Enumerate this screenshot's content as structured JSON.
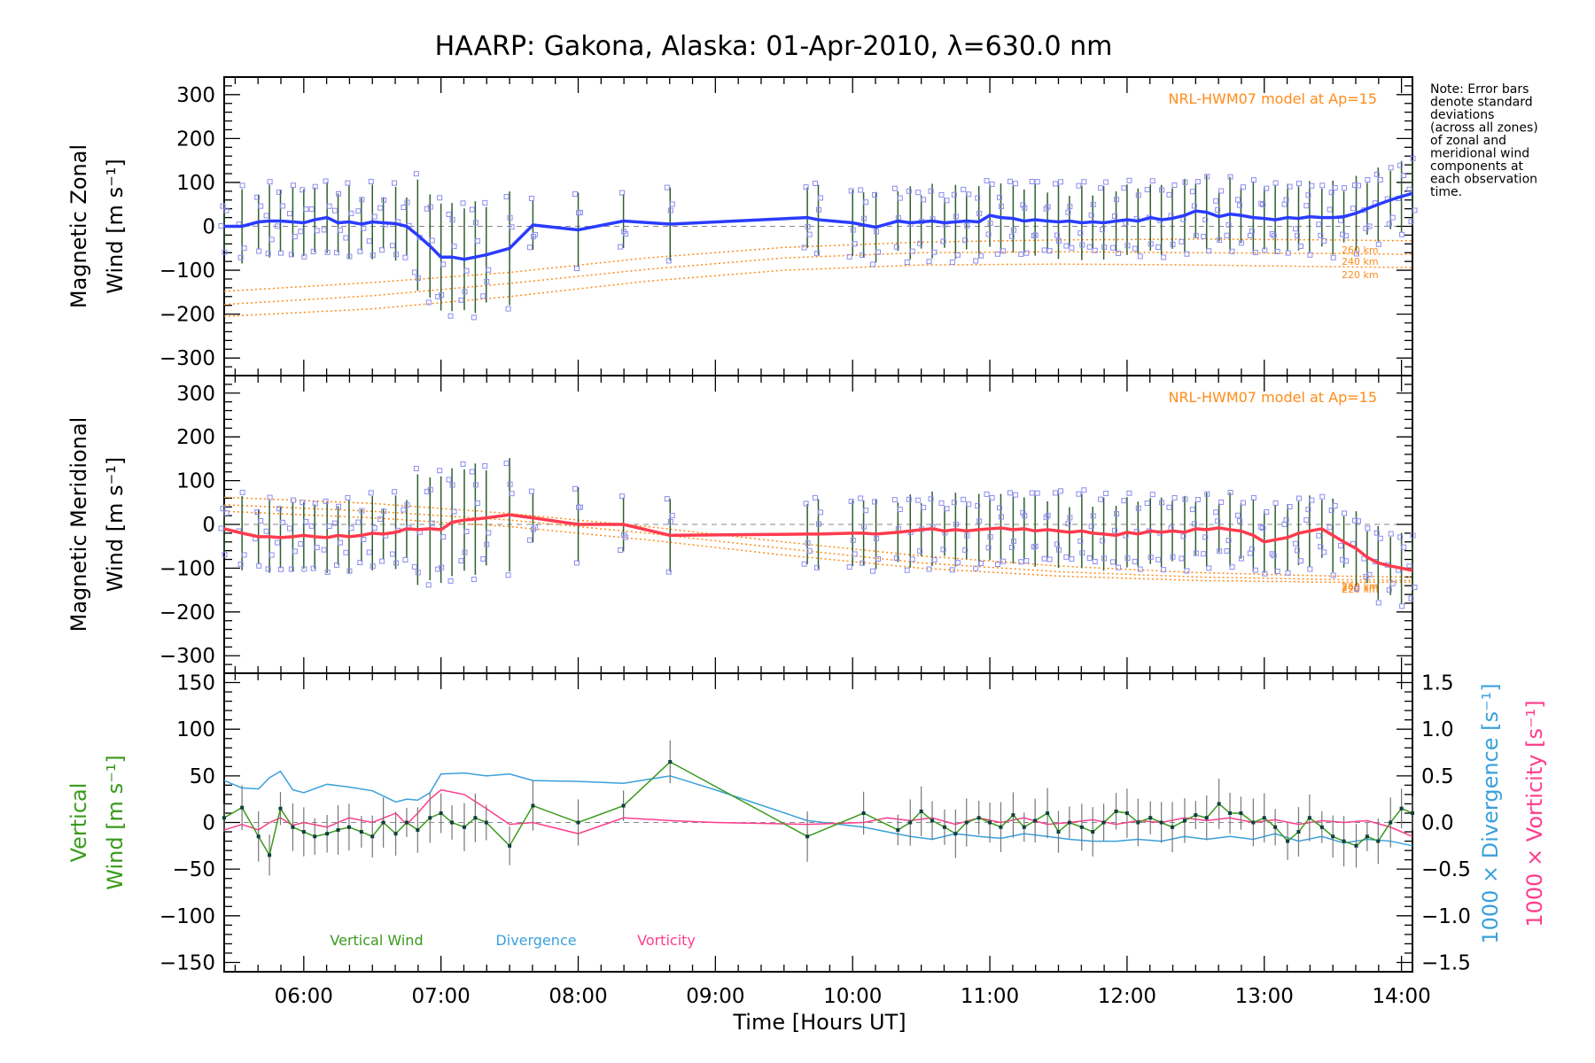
{
  "colors": {
    "zonal_line": "#2a3cff",
    "meridional_line": "#ff3b4e",
    "vertical": "#3a9a1c",
    "divergence": "#3aa0dc",
    "vorticity": "#ff3c8c",
    "model": "#ff8c1a",
    "error_bar": "#2f5f2f",
    "scatter": "#8c8cf0"
  },
  "chart_data": [
    {
      "type": "line",
      "title": "HAARP: Gakona,  Alaska: 01-Apr-2010, λ=630.0 nm",
      "ylabel_line1": "Magnetic Zonal",
      "ylabel_line2": "Wind [m s⁻¹]",
      "xlim": [
        5.42,
        14.08
      ],
      "ylim": [
        -340,
        340
      ],
      "yticks": [
        300,
        200,
        100,
        0,
        -100,
        -200,
        -300
      ],
      "yticklabels": [
        "300",
        "200",
        "100",
        "0",
        "−100",
        "−200",
        "−300"
      ],
      "model_label": "NRL-HWM07 model at Ap=15",
      "altitude_labels": [
        "260 km",
        "240 km",
        "220 km"
      ],
      "note": [
        "Note: Error bars",
        "denote standard",
        "deviations",
        "(across all zones)",
        "of zonal and",
        "meridional wind",
        "components at",
        "each observation",
        "time."
      ],
      "series": [
        {
          "x": [
            5.42,
            5.55,
            5.67,
            5.75,
            5.83,
            5.92,
            6.0,
            6.08,
            6.17,
            6.25,
            6.33,
            6.42,
            6.5,
            6.58,
            6.67,
            6.75,
            6.83,
            6.92,
            7.0,
            7.08,
            7.17,
            7.25,
            7.33,
            7.5,
            7.67,
            8.0,
            8.33,
            8.67,
            9.67,
            9.75,
            10.0,
            10.08,
            10.17,
            10.33,
            10.42,
            10.5,
            10.58,
            10.67,
            10.75,
            10.83,
            10.92,
            11.0,
            11.08,
            11.17,
            11.25,
            11.33,
            11.42,
            11.5,
            11.58,
            11.67,
            11.75,
            11.83,
            11.92,
            12.0,
            12.08,
            12.17,
            12.25,
            12.33,
            12.42,
            12.5,
            12.58,
            12.67,
            12.75,
            12.83,
            12.92,
            13.0,
            13.08,
            13.17,
            13.25,
            13.33,
            13.42,
            13.5,
            13.58,
            13.67,
            13.75,
            13.83,
            13.92,
            14.0,
            14.08
          ],
          "y": [
            0,
            0,
            10,
            12,
            12,
            10,
            8,
            15,
            20,
            8,
            10,
            5,
            10,
            8,
            6,
            0,
            -20,
            -45,
            -70,
            -70,
            -75,
            -70,
            -65,
            -50,
            3,
            -8,
            12,
            5,
            20,
            15,
            8,
            3,
            -2,
            12,
            8,
            10,
            12,
            8,
            10,
            12,
            10,
            25,
            20,
            18,
            12,
            15,
            12,
            10,
            12,
            8,
            10,
            8,
            12,
            15,
            12,
            20,
            15,
            18,
            25,
            35,
            32,
            22,
            28,
            25,
            20,
            18,
            15,
            20,
            18,
            22,
            20,
            20,
            22,
            30,
            40,
            50,
            60,
            68,
            75
          ]
        }
      ],
      "model_curves": [
        {
          "x": [
            5.42,
            6.5,
            7.5,
            8.5,
            9.5,
            10.5,
            11.5,
            12.5,
            13.5,
            14.08
          ],
          "y": [
            -148,
            -128,
            -105,
            -72,
            -48,
            -36,
            -31,
            -29,
            -31,
            -33
          ]
        },
        {
          "x": [
            5.42,
            6.5,
            7.5,
            8.5,
            9.5,
            10.5,
            11.5,
            12.5,
            13.5,
            14.08
          ],
          "y": [
            -178,
            -158,
            -130,
            -98,
            -72,
            -60,
            -58,
            -60,
            -62,
            -64
          ]
        },
        {
          "x": [
            5.42,
            6.5,
            7.5,
            8.5,
            9.5,
            10.5,
            11.5,
            12.5,
            13.5,
            14.08
          ],
          "y": [
            -205,
            -188,
            -160,
            -125,
            -100,
            -88,
            -86,
            -88,
            -92,
            -94
          ]
        }
      ]
    },
    {
      "type": "line",
      "ylabel_line1": "Magnetic Meridional",
      "ylabel_line2": "Wind [m s⁻¹]",
      "xlim": [
        5.42,
        14.08
      ],
      "ylim": [
        -340,
        340
      ],
      "yticks": [
        300,
        200,
        100,
        0,
        -100,
        -200,
        -300
      ],
      "yticklabels": [
        "300",
        "200",
        "100",
        "0",
        "−100",
        "−200",
        "−300"
      ],
      "model_label": "NRL-HWM07 model at Ap=15",
      "altitude_labels": [
        "260 km",
        "240 km",
        "220 km"
      ],
      "series": [
        {
          "x": [
            5.42,
            5.55,
            5.67,
            5.75,
            5.83,
            5.92,
            6.0,
            6.08,
            6.17,
            6.25,
            6.33,
            6.42,
            6.5,
            6.58,
            6.67,
            6.75,
            6.83,
            6.92,
            7.0,
            7.08,
            7.17,
            7.25,
            7.33,
            7.5,
            7.67,
            8.0,
            8.33,
            8.67,
            9.67,
            9.75,
            10.0,
            10.08,
            10.17,
            10.33,
            10.42,
            10.5,
            10.58,
            10.67,
            10.75,
            10.83,
            10.92,
            11.0,
            11.08,
            11.17,
            11.25,
            11.33,
            11.42,
            11.5,
            11.58,
            11.67,
            11.75,
            11.83,
            11.92,
            12.0,
            12.08,
            12.17,
            12.25,
            12.33,
            12.42,
            12.5,
            12.58,
            12.67,
            12.75,
            12.83,
            12.92,
            13.0,
            13.08,
            13.17,
            13.25,
            13.33,
            13.42,
            13.5,
            13.58,
            13.67,
            13.75,
            13.83,
            13.92,
            14.0,
            14.08
          ],
          "y": [
            -10,
            -20,
            -28,
            -28,
            -30,
            -28,
            -25,
            -28,
            -30,
            -25,
            -28,
            -25,
            -20,
            -22,
            -18,
            -10,
            -12,
            -10,
            -12,
            5,
            10,
            12,
            15,
            22,
            15,
            0,
            0,
            -25,
            -22,
            -22,
            -20,
            -20,
            -22,
            -18,
            -15,
            -12,
            -10,
            -15,
            -12,
            -15,
            -12,
            -10,
            -8,
            -12,
            -10,
            -15,
            -12,
            -15,
            -18,
            -15,
            -20,
            -22,
            -25,
            -18,
            -22,
            -15,
            -18,
            -15,
            -18,
            -10,
            -12,
            -8,
            -12,
            -15,
            -25,
            -40,
            -35,
            -30,
            -20,
            -15,
            -10,
            -25,
            -40,
            -55,
            -75,
            -88,
            -95,
            -100,
            -105
          ]
        }
      ],
      "model_curves": [
        {
          "x": [
            5.42,
            6.5,
            7.5,
            8.5,
            9.5,
            10.5,
            11.5,
            12.5,
            13.5,
            14.08
          ],
          "y": [
            62,
            48,
            25,
            -5,
            -40,
            -72,
            -95,
            -110,
            -118,
            -120
          ]
        },
        {
          "x": [
            5.42,
            6.5,
            7.5,
            8.5,
            9.5,
            10.5,
            11.5,
            12.5,
            13.5,
            14.08
          ],
          "y": [
            45,
            30,
            10,
            -20,
            -55,
            -88,
            -108,
            -120,
            -126,
            -128
          ]
        },
        {
          "x": [
            5.42,
            6.5,
            7.5,
            8.5,
            9.5,
            10.5,
            11.5,
            12.5,
            13.5,
            14.08
          ],
          "y": [
            30,
            15,
            -5,
            -35,
            -70,
            -100,
            -118,
            -128,
            -132,
            -132
          ]
        }
      ]
    },
    {
      "type": "line",
      "ylabel_line1": "Vertical",
      "ylabel_line2": "Wind [m s⁻¹]",
      "y2label_line1": "1000 × Divergence [s⁻¹]",
      "y2label_line2": "1000 × Vorticity [s⁻¹]",
      "xlim": [
        5.42,
        14.08
      ],
      "ylim": [
        -160,
        160
      ],
      "y2lim": [
        -1.6,
        1.6
      ],
      "yticks": [
        150,
        100,
        50,
        0,
        -50,
        -100,
        -150
      ],
      "yticklabels": [
        "150",
        "100",
        "50",
        "0",
        "−50",
        "−100",
        "−150"
      ],
      "y2ticks": [
        1.5,
        1.0,
        0.5,
        0.0,
        -0.5,
        -1.0,
        -1.5
      ],
      "y2ticklabels": [
        "1.5",
        "1.0",
        "0.5",
        "0.0",
        "−0.5",
        "−1.0",
        "−1.5"
      ],
      "xticks": [
        6,
        7,
        8,
        9,
        10,
        11,
        12,
        13,
        14
      ],
      "xticklabels": [
        "06:00",
        "07:00",
        "08:00",
        "09:00",
        "10:00",
        "11:00",
        "12:00",
        "13:00",
        "14:00"
      ],
      "xlabel": "Time [Hours UT]",
      "legend": [
        "Vertical Wind",
        "Divergence",
        "Vorticity"
      ],
      "series": [
        {
          "name": "Vertical Wind",
          "x": [
            5.42,
            5.55,
            5.67,
            5.75,
            5.83,
            5.92,
            6.0,
            6.08,
            6.17,
            6.25,
            6.33,
            6.42,
            6.5,
            6.58,
            6.67,
            6.75,
            6.83,
            6.92,
            7.0,
            7.08,
            7.17,
            7.25,
            7.33,
            7.5,
            7.67,
            8.0,
            8.33,
            8.67,
            9.67,
            10.08,
            10.33,
            10.42,
            10.5,
            10.58,
            10.67,
            10.75,
            10.83,
            10.92,
            11.0,
            11.08,
            11.17,
            11.25,
            11.33,
            11.42,
            11.5,
            11.58,
            11.67,
            11.75,
            11.83,
            11.92,
            12.0,
            12.08,
            12.17,
            12.25,
            12.33,
            12.42,
            12.5,
            12.58,
            12.67,
            12.75,
            12.83,
            12.92,
            13.0,
            13.08,
            13.17,
            13.25,
            13.33,
            13.42,
            13.5,
            13.58,
            13.67,
            13.75,
            13.83,
            13.92,
            14.0,
            14.08
          ],
          "y": [
            5,
            16,
            -15,
            -35,
            15,
            -5,
            -10,
            -15,
            -12,
            -8,
            -5,
            -10,
            -15,
            0,
            -12,
            0,
            -8,
            5,
            10,
            0,
            -5,
            5,
            0,
            -25,
            18,
            0,
            18,
            65,
            -15,
            10,
            -8,
            0,
            12,
            2,
            -5,
            -12,
            0,
            5,
            0,
            -5,
            8,
            -5,
            2,
            10,
            -10,
            0,
            -5,
            -10,
            0,
            12,
            10,
            0,
            5,
            0,
            -5,
            2,
            8,
            5,
            20,
            10,
            10,
            0,
            5,
            -5,
            -20,
            -10,
            5,
            -5,
            -15,
            -20,
            -25,
            -15,
            -20,
            0,
            15,
            10
          ]
        },
        {
          "name": "Divergence",
          "x": [
            5.42,
            5.55,
            5.67,
            5.75,
            5.83,
            5.92,
            6.0,
            6.17,
            6.33,
            6.5,
            6.67,
            6.75,
            6.83,
            6.92,
            7.0,
            7.17,
            7.33,
            7.5,
            7.67,
            8.0,
            8.33,
            8.67,
            9.0,
            9.67,
            10.08,
            10.25,
            10.42,
            10.58,
            10.75,
            10.92,
            11.08,
            11.25,
            11.42,
            11.58,
            11.75,
            11.92,
            12.08,
            12.25,
            12.42,
            12.58,
            12.75,
            12.92,
            13.08,
            13.25,
            13.42,
            13.58,
            13.75,
            13.92,
            14.08
          ],
          "y": [
            0.45,
            0.37,
            0.36,
            0.48,
            0.55,
            0.35,
            0.32,
            0.41,
            0.38,
            0.34,
            0.22,
            0.25,
            0.24,
            0.32,
            0.52,
            0.53,
            0.5,
            0.52,
            0.45,
            0.44,
            0.42,
            0.5,
            0.35,
            0.02,
            -0.05,
            -0.1,
            -0.15,
            -0.18,
            -0.12,
            -0.15,
            -0.17,
            -0.12,
            -0.15,
            -0.18,
            -0.2,
            -0.2,
            -0.18,
            -0.2,
            -0.15,
            -0.18,
            -0.15,
            -0.18,
            -0.12,
            -0.2,
            -0.15,
            -0.22,
            -0.18,
            -0.2,
            -0.25
          ]
        },
        {
          "name": "Vorticity",
          "x": [
            5.42,
            5.55,
            5.67,
            5.75,
            5.83,
            5.92,
            6.0,
            6.17,
            6.33,
            6.5,
            6.67,
            6.75,
            6.83,
            6.92,
            7.0,
            7.17,
            7.33,
            7.5,
            7.67,
            8.0,
            8.33,
            8.67,
            9.0,
            9.67,
            10.08,
            10.25,
            10.42,
            10.58,
            10.75,
            10.92,
            11.08,
            11.25,
            11.42,
            11.58,
            11.75,
            11.92,
            12.08,
            12.25,
            12.42,
            12.58,
            12.75,
            12.92,
            13.08,
            13.25,
            13.42,
            13.58,
            13.75,
            13.92,
            14.08
          ],
          "y": [
            -0.08,
            -0.02,
            -0.08,
            0.0,
            0.05,
            -0.03,
            0.0,
            -0.05,
            0.05,
            0.0,
            0.1,
            -0.02,
            0.1,
            0.25,
            0.35,
            0.3,
            0.15,
            -0.02,
            0.0,
            -0.12,
            0.05,
            0.02,
            0.0,
            -0.02,
            0.0,
            0.05,
            0.02,
            0.05,
            -0.02,
            0.05,
            0.0,
            0.05,
            -0.02,
            0.0,
            0.03,
            -0.02,
            0.02,
            0.0,
            0.05,
            0.02,
            0.05,
            0.0,
            0.03,
            -0.02,
            0.02,
            0.0,
            0.02,
            -0.05,
            -0.15
          ]
        }
      ]
    }
  ]
}
